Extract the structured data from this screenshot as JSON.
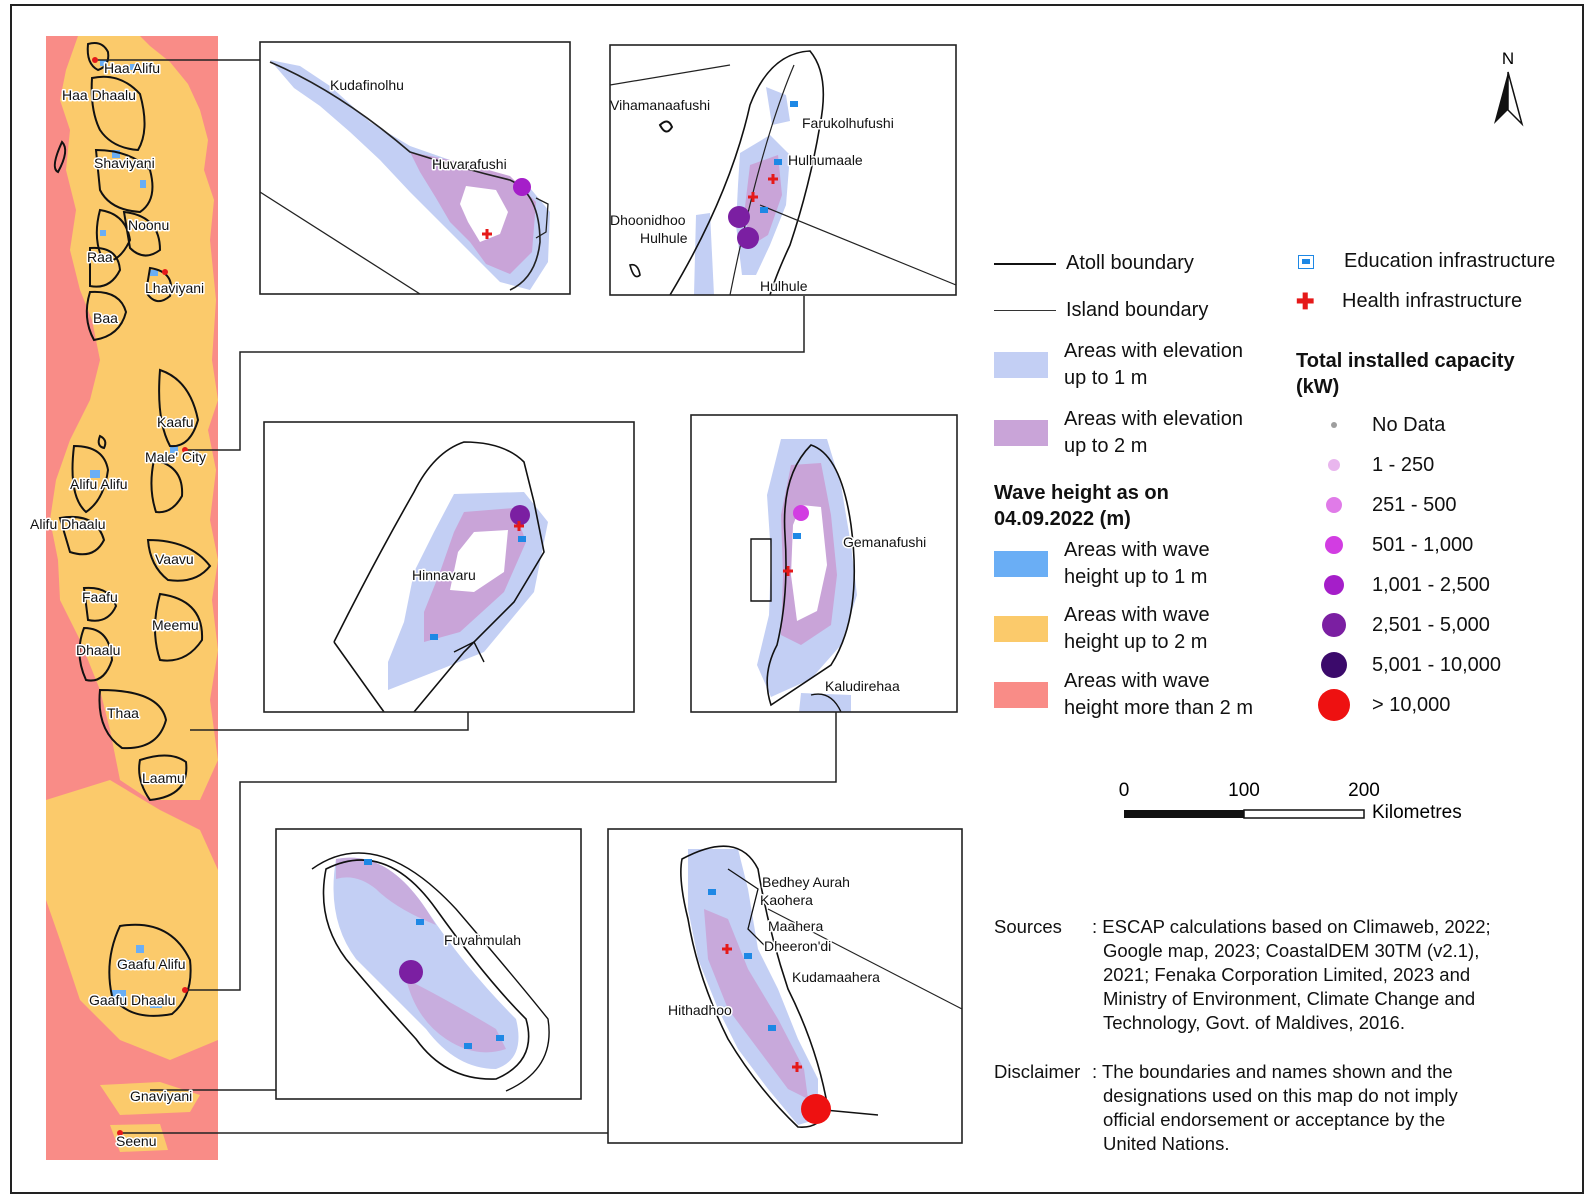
{
  "north": "N",
  "atolls": [
    {
      "name": "Haa Alifu"
    },
    {
      "name": "Haa Dhaalu"
    },
    {
      "name": "Shaviyani"
    },
    {
      "name": "Noonu"
    },
    {
      "name": "Raa"
    },
    {
      "name": "Lhaviyani"
    },
    {
      "name": "Baa"
    },
    {
      "name": "Kaafu"
    },
    {
      "name": "Male' City"
    },
    {
      "name": "Alifu Alifu"
    },
    {
      "name": "Alifu Dhaalu"
    },
    {
      "name": "Vaavu"
    },
    {
      "name": "Faafu"
    },
    {
      "name": "Meemu"
    },
    {
      "name": "Dhaalu"
    },
    {
      "name": "Thaa"
    },
    {
      "name": "Laamu"
    },
    {
      "name": "Gaafu Alifu"
    },
    {
      "name": "Gaafu Dhaalu"
    },
    {
      "name": "Gnaviyani"
    },
    {
      "name": "Seenu"
    }
  ],
  "insets": {
    "haa_alifu": {
      "labels": [
        "Kudafinolhu",
        "Huvarafushi"
      ]
    },
    "male": {
      "labels": [
        "Vihamanaafushi",
        "Farukolhufushi",
        "Hulhumaale",
        "Dhoonidhoo",
        "Hulhule",
        "Hulhule"
      ]
    },
    "hinnavaru": {
      "labels": [
        "Hinnavaru"
      ]
    },
    "gemanafushi": {
      "labels": [
        "Gemanafushi",
        "Kaludirehaa"
      ]
    },
    "fuvahmulah": {
      "labels": [
        "Fuvahmulah"
      ]
    },
    "hithadhoo": {
      "labels": [
        "Bedhey Aurah",
        "Kaohera",
        "Maahera",
        "Dheeron'di",
        "Kudamaahera",
        "Hithadhoo"
      ]
    }
  },
  "legend": {
    "atoll_boundary": "Atoll boundary",
    "island_boundary": "Island boundary",
    "elev1": [
      "Areas with elevation",
      "up to 1 m"
    ],
    "elev2": [
      "Areas with elevation",
      "up to 2 m"
    ],
    "wave_title": [
      "Wave height as on",
      "04.09.2022 (m)"
    ],
    "wave1": [
      "Areas with wave",
      "height up to 1 m"
    ],
    "wave2": [
      "Areas with wave",
      "height up to 2 m"
    ],
    "wave3": [
      "Areas with wave",
      "height more than 2 m"
    ],
    "education": "Education infrastructure",
    "health": "Health infrastructure",
    "capacity_title": [
      "Total installed capacity",
      "(kW)"
    ],
    "capacity_classes": [
      {
        "label": "No Data",
        "color": "#9e9e9e",
        "size": 6
      },
      {
        "label": "1 - 250",
        "color": "#e9b6ee",
        "size": 12
      },
      {
        "label": "251 - 500",
        "color": "#e07be8",
        "size": 16
      },
      {
        "label": "501 - 1,000",
        "color": "#d23de2",
        "size": 18
      },
      {
        "label": "1,001 - 2,500",
        "color": "#a51ec9",
        "size": 20
      },
      {
        "label": "2,501 - 5,000",
        "color": "#7b1fa2",
        "size": 24
      },
      {
        "label": "5,001 - 10,000",
        "color": "#3b0a6b",
        "size": 26
      },
      {
        "label": "> 10,000",
        "color": "#ee1111",
        "size": 32
      }
    ]
  },
  "colors": {
    "wave1": "#6aaef5",
    "wave2": "#fbca6b",
    "wave3": "#f98c87",
    "elev1": "#c3cff4",
    "elev2": "#c9a4d8",
    "health": "#e51919",
    "education": "#1e88e5"
  },
  "scale": {
    "ticks": [
      "0",
      "100",
      "200"
    ],
    "unit": "Kilometres"
  },
  "sources": {
    "label": "Sources",
    "text": [
      ": ESCAP calculations based on Climaweb, 2022;",
      "Google map, 2023; CoastalDEM 30TM (v2.1),",
      "2021; Fenaka Corporation Limited, 2023 and",
      "Ministry of  Environment, Climate Change and",
      "Technology, Govt. of Maldives, 2016."
    ]
  },
  "disclaimer": {
    "label": "Disclaimer",
    "text": [
      ": The boundaries and names shown and the",
      "designations used on this map do  not imply",
      "official endorsement or acceptance by  the",
      "United Nations."
    ]
  }
}
